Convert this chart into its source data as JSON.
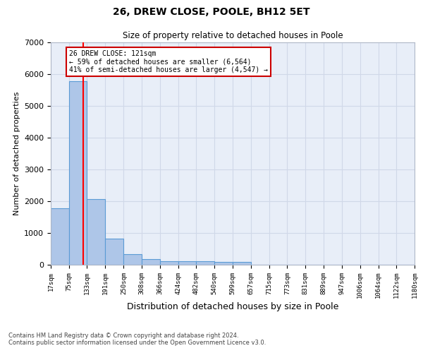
{
  "title": "26, DREW CLOSE, POOLE, BH12 5ET",
  "subtitle": "Size of property relative to detached houses in Poole",
  "xlabel": "Distribution of detached houses by size in Poole",
  "ylabel": "Number of detached properties",
  "footnote1": "Contains HM Land Registry data © Crown copyright and database right 2024.",
  "footnote2": "Contains public sector information licensed under the Open Government Licence v3.0.",
  "bar_edges": [
    17,
    75,
    133,
    191,
    250,
    308,
    366,
    424,
    482,
    540,
    599,
    657,
    715,
    773,
    831,
    889,
    947,
    1006,
    1064,
    1122,
    1180
  ],
  "bar_values": [
    1780,
    5780,
    2060,
    820,
    340,
    180,
    120,
    110,
    110,
    100,
    85,
    0,
    0,
    0,
    0,
    0,
    0,
    0,
    0,
    0
  ],
  "bar_color": "#aec6e8",
  "bar_edge_color": "#5b9bd5",
  "grid_color": "#d0d8e8",
  "bg_color": "#e8eef8",
  "red_line_x": 121,
  "annotation_text": "26 DREW CLOSE: 121sqm\n← 59% of detached houses are smaller (6,564)\n41% of semi-detached houses are larger (4,547) →",
  "annotation_box_color": "#cc0000",
  "ylim": [
    0,
    7000
  ],
  "yticks": [
    0,
    1000,
    2000,
    3000,
    4000,
    5000,
    6000,
    7000
  ]
}
